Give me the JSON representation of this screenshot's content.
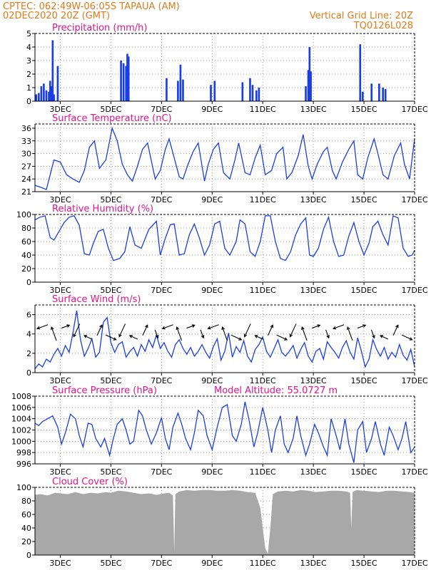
{
  "header": {
    "left_line1": "CPTEC:   062:49W-06:05S   TAPAUA (AM)",
    "left_line2": "02DEC2020 20Z (GMT)",
    "right_line1": "Vertical Grid Line: 20Z",
    "right_line2": "TQ0126L028"
  },
  "colors": {
    "header": "#e07b1a",
    "title": "#e0158a",
    "series": "#1a3ee6",
    "cloud": "#a8a8a8",
    "arrow": "#000000",
    "grid": "#9a9a9a"
  },
  "x_axis": {
    "range_days": [
      2.0,
      17.0
    ],
    "tick_days": [
      3,
      5,
      7,
      9,
      11,
      13,
      15,
      17
    ],
    "tick_labels": [
      "3DEC",
      "5DEC",
      "7DEC",
      "9DEC",
      "11DEC",
      "13DEC",
      "15DEC",
      "17DEC"
    ]
  },
  "chart_data": [
    {
      "id": "precip",
      "type": "bar",
      "title": "Precipitation (mm/h)",
      "ylim": [
        0,
        5
      ],
      "yticks": [
        0,
        1,
        2,
        3,
        4,
        5
      ],
      "grid": true,
      "bars": [
        [
          2.05,
          0.5
        ],
        [
          2.15,
          0.6
        ],
        [
          2.25,
          1.1
        ],
        [
          2.35,
          1.3
        ],
        [
          2.45,
          0.8
        ],
        [
          2.55,
          0.7
        ],
        [
          2.6,
          1.5
        ],
        [
          2.65,
          1.1
        ],
        [
          2.7,
          4.5
        ],
        [
          2.75,
          0.5
        ],
        [
          2.9,
          2.6
        ],
        [
          5.4,
          3.0
        ],
        [
          5.5,
          2.8
        ],
        [
          5.6,
          2.6
        ],
        [
          5.65,
          3.5
        ],
        [
          5.7,
          3.3
        ],
        [
          7.2,
          1.7
        ],
        [
          7.65,
          1.5
        ],
        [
          7.75,
          2.7
        ],
        [
          7.85,
          1.6
        ],
        [
          8.95,
          1.2
        ],
        [
          9.1,
          1.5
        ],
        [
          10.2,
          1.4
        ],
        [
          10.5,
          1.7
        ],
        [
          10.6,
          1.2
        ],
        [
          10.75,
          0.8
        ],
        [
          10.85,
          1.0
        ],
        [
          12.7,
          1.1
        ],
        [
          12.8,
          2.3
        ],
        [
          12.85,
          4.0
        ],
        [
          12.9,
          2.2
        ],
        [
          14.85,
          4.2
        ],
        [
          14.95,
          0.7
        ],
        [
          15.3,
          1.3
        ],
        [
          15.6,
          1.3
        ],
        [
          15.75,
          1.0
        ],
        [
          15.85,
          0.9
        ]
      ]
    },
    {
      "id": "temperature",
      "type": "line",
      "title": "Surface Temperature (nC)",
      "ylim": [
        21,
        37
      ],
      "yticks": [
        21,
        24,
        27,
        30,
        33,
        36
      ],
      "grid": true,
      "x": [
        2.0,
        2.25,
        2.45,
        2.6,
        2.75,
        3.0,
        3.25,
        3.5,
        3.75,
        3.95,
        4.15,
        4.35,
        4.55,
        4.8,
        5.05,
        5.25,
        5.45,
        5.65,
        5.85,
        6.05,
        6.25,
        6.45,
        6.75,
        6.95,
        7.15,
        7.3,
        7.5,
        7.7,
        7.85,
        8.05,
        8.25,
        8.45,
        8.7,
        8.85,
        9.05,
        9.25,
        9.45,
        9.7,
        9.9,
        10.05,
        10.3,
        10.5,
        10.7,
        10.9,
        11.1,
        11.35,
        11.55,
        11.8,
        11.95,
        12.15,
        12.4,
        12.6,
        12.8,
        12.95,
        13.15,
        13.4,
        13.55,
        13.75,
        13.9,
        14.15,
        14.4,
        14.6,
        14.75,
        14.95,
        15.15,
        15.4,
        15.55,
        15.75,
        15.95,
        16.2,
        16.45,
        16.6,
        16.8,
        17.0
      ],
      "values": [
        22.5,
        22.0,
        21.5,
        25.0,
        28.5,
        28.0,
        25.0,
        24.0,
        23.2,
        26.0,
        31.5,
        33.0,
        26.5,
        28.5,
        36.0,
        33.0,
        27.5,
        25.0,
        23.5,
        27.0,
        31.0,
        32.5,
        24.0,
        26.0,
        31.0,
        33.5,
        29.0,
        24.5,
        24.0,
        27.5,
        30.5,
        32.5,
        23.5,
        27.5,
        31.0,
        32.5,
        25.5,
        24.0,
        28.5,
        32.5,
        25.5,
        25.0,
        29.0,
        32.0,
        25.0,
        26.0,
        30.0,
        31.5,
        24.0,
        25.5,
        29.5,
        34.5,
        27.0,
        24.0,
        27.5,
        30.5,
        31.5,
        26.0,
        24.0,
        28.0,
        31.0,
        33.0,
        25.0,
        24.0,
        29.0,
        33.5,
        30.0,
        25.0,
        24.0,
        29.5,
        32.5,
        27.5,
        24.0,
        33.5
      ]
    },
    {
      "id": "humidity",
      "type": "line",
      "title": "Relative Humidity (%)",
      "ylim": [
        0,
        100
      ],
      "yticks": [
        0,
        20,
        40,
        60,
        80,
        100
      ],
      "grid": true,
      "x": [
        2.0,
        2.2,
        2.4,
        2.6,
        2.75,
        2.95,
        3.15,
        3.35,
        3.55,
        3.75,
        3.95,
        4.15,
        4.3,
        4.5,
        4.7,
        4.9,
        5.1,
        5.35,
        5.55,
        5.75,
        5.95,
        6.2,
        6.5,
        6.8,
        6.95,
        7.15,
        7.35,
        7.5,
        7.7,
        7.9,
        8.1,
        8.3,
        8.5,
        8.7,
        8.9,
        9.1,
        9.3,
        9.5,
        9.7,
        9.95,
        10.1,
        10.3,
        10.5,
        10.7,
        10.9,
        11.1,
        11.3,
        11.5,
        11.7,
        11.9,
        12.1,
        12.3,
        12.5,
        12.7,
        12.85,
        13.0,
        13.2,
        13.4,
        13.6,
        13.8,
        14.0,
        14.2,
        14.4,
        14.6,
        14.8,
        15.0,
        15.2,
        15.35,
        15.55,
        15.75,
        15.95,
        16.15,
        16.35,
        16.55,
        16.75,
        16.9,
        17.0
      ],
      "values": [
        92,
        96,
        98,
        66,
        62,
        75,
        88,
        96,
        98,
        84,
        42,
        40,
        57,
        75,
        78,
        50,
        32,
        35,
        45,
        82,
        55,
        50,
        78,
        90,
        40,
        65,
        85,
        86,
        40,
        42,
        70,
        86,
        65,
        40,
        55,
        86,
        90,
        50,
        40,
        60,
        92,
        86,
        45,
        38,
        60,
        98,
        98,
        60,
        35,
        32,
        45,
        70,
        86,
        95,
        40,
        38,
        50,
        78,
        96,
        60,
        38,
        40,
        68,
        88,
        60,
        40,
        58,
        82,
        90,
        70,
        55,
        98,
        95,
        50,
        38,
        40,
        47
      ]
    },
    {
      "id": "wind",
      "type": "line",
      "title": "Surface Wind (m/s)",
      "ylim": [
        0,
        7
      ],
      "yticks": [
        0,
        2,
        4,
        6
      ],
      "grid": true,
      "x": [
        2.0,
        2.15,
        2.3,
        2.45,
        2.6,
        2.75,
        2.9,
        3.05,
        3.2,
        3.35,
        3.5,
        3.65,
        3.8,
        3.95,
        4.1,
        4.25,
        4.4,
        4.55,
        4.7,
        4.85,
        5.0,
        5.15,
        5.3,
        5.45,
        5.6,
        5.75,
        5.9,
        6.05,
        6.2,
        6.35,
        6.5,
        6.65,
        6.8,
        6.95,
        7.1,
        7.25,
        7.4,
        7.55,
        7.7,
        7.85,
        8.0,
        8.15,
        8.3,
        8.45,
        8.6,
        8.75,
        8.9,
        9.05,
        9.2,
        9.35,
        9.5,
        9.65,
        9.8,
        9.95,
        10.1,
        10.25,
        10.4,
        10.55,
        10.7,
        10.85,
        11.0,
        11.15,
        11.3,
        11.45,
        11.6,
        11.75,
        11.9,
        12.05,
        12.2,
        12.35,
        12.5,
        12.65,
        12.8,
        12.95,
        13.1,
        13.25,
        13.4,
        13.55,
        13.7,
        13.85,
        14.0,
        14.15,
        14.3,
        14.45,
        14.6,
        14.75,
        14.9,
        15.05,
        15.2,
        15.35,
        15.5,
        15.65,
        15.8,
        15.95,
        16.1,
        16.25,
        16.4,
        16.55,
        16.7,
        16.85,
        17.0
      ],
      "values": [
        0.4,
        0.9,
        0.6,
        1.4,
        1.1,
        1.9,
        2.5,
        1.7,
        2.8,
        2.1,
        4.1,
        6.4,
        3.4,
        1.7,
        2.5,
        3.5,
        1.6,
        2.1,
        5.2,
        5.7,
        3.1,
        2.1,
        2.9,
        3.2,
        1.6,
        2.2,
        2.6,
        1.7,
        2.9,
        2.2,
        3.4,
        2.6,
        3.9,
        2.5,
        3.1,
        2.2,
        1.6,
        2.9,
        3.4,
        2.5,
        1.9,
        2.6,
        1.7,
        2.2,
        2.9,
        2.1,
        1.5,
        2.7,
        3.5,
        1.3,
        2.2,
        4.1,
        1.6,
        2.7,
        2.1,
        3.3,
        1.7,
        1.1,
        2.4,
        2.9,
        3.7,
        2.2,
        1.6,
        2.5,
        3.4,
        2.1,
        1.7,
        2.2,
        2.8,
        1.5,
        2.4,
        3.1,
        1.7,
        1.1,
        2.2,
        2.5,
        1.4,
        3.2,
        2.6,
        2.1,
        1.5,
        2.6,
        3.3,
        2.1,
        1.4,
        3.6,
        2.2,
        0.6,
        1.4,
        3.4,
        2.4,
        1.7,
        2.6,
        1.4,
        2.1,
        1.6,
        2.9,
        1.8,
        1.3,
        2.4,
        0.6
      ]
    },
    {
      "id": "pressure",
      "type": "line",
      "title": "Surface Pressure (hPa)",
      "annotation": "Model Altitude: 55.0727 m",
      "ylim": [
        996,
        1008
      ],
      "yticks": [
        996,
        998,
        1000,
        1002,
        1004,
        1006,
        1008
      ],
      "grid": true,
      "x": [
        2.0,
        2.15,
        2.3,
        2.5,
        2.7,
        2.9,
        3.05,
        3.2,
        3.4,
        3.6,
        3.75,
        3.9,
        4.1,
        4.25,
        4.4,
        4.6,
        4.75,
        4.95,
        5.1,
        5.25,
        5.45,
        5.6,
        5.75,
        5.9,
        6.1,
        6.25,
        6.4,
        6.6,
        6.8,
        7.0,
        7.15,
        7.3,
        7.45,
        7.65,
        7.8,
        7.95,
        8.15,
        8.3,
        8.45,
        8.65,
        8.8,
        9.0,
        9.2,
        9.4,
        9.6,
        9.8,
        9.95,
        10.15,
        10.3,
        10.45,
        10.65,
        10.8,
        11.0,
        11.2,
        11.35,
        11.5,
        11.7,
        11.85,
        12.0,
        12.2,
        12.35,
        12.5,
        12.7,
        12.85,
        13.05,
        13.2,
        13.4,
        13.55,
        13.7,
        13.9,
        14.05,
        14.25,
        14.4,
        14.6,
        14.75,
        14.95,
        15.1,
        15.3,
        15.45,
        15.65,
        15.8,
        16.0,
        16.15,
        16.35,
        16.5,
        16.65,
        16.85,
        17.0
      ],
      "values": [
        1003.2,
        1002.8,
        1003.5,
        1004.0,
        1004.5,
        1002.5,
        999.5,
        1001.5,
        1004.8,
        1004.0,
        1001.0,
        999.0,
        1003.2,
        1003.0,
        1000.5,
        999.0,
        1000.5,
        997.5,
        1000.5,
        1003.0,
        1004.0,
        1002.0,
        999.5,
        1000.0,
        1005.5,
        1004.5,
        1002.0,
        999.5,
        1001.5,
        1004.2,
        1000.5,
        998.5,
        1002.5,
        1005.0,
        1003.0,
        1000.5,
        998.5,
        1001.5,
        1005.5,
        1004.5,
        1001.0,
        998.5,
        1002.5,
        1006.0,
        1006.5,
        1001.0,
        1000.0,
        1003.0,
        1007.0,
        1004.0,
        999.0,
        1001.5,
        1006.0,
        1002.0,
        998.0,
        1002.0,
        1004.5,
        999.5,
        998.0,
        1000.5,
        1004.5,
        1001.0,
        997.5,
        999.5,
        1003.0,
        1001.5,
        999.0,
        997.5,
        1004.0,
        1001.0,
        998.5,
        1004.0,
        999.5,
        996.2,
        1002.0,
        1003.5,
        998.0,
        1000.5,
        1003.5,
        999.5,
        997.5,
        1002.5,
        1001.0,
        998.5,
        1000.5,
        1003.5,
        998.0,
        999.0
      ]
    },
    {
      "id": "cloud",
      "type": "area",
      "title": "Cloud Cover (%)",
      "ylim": [
        0,
        100
      ],
      "yticks": [
        0,
        20,
        40,
        60,
        80,
        100
      ],
      "grid": true,
      "x": [
        2.0,
        2.2,
        2.5,
        2.8,
        3.0,
        3.3,
        3.6,
        3.9,
        4.2,
        4.5,
        4.8,
        5.0,
        5.3,
        5.6,
        5.9,
        6.2,
        6.5,
        6.8,
        7.1,
        7.3,
        7.45,
        7.5,
        7.55,
        7.7,
        8.0,
        8.3,
        8.6,
        8.9,
        9.2,
        9.5,
        9.8,
        10.1,
        10.4,
        10.7,
        10.9,
        11.0,
        11.1,
        11.2,
        11.3,
        11.4,
        11.6,
        11.9,
        12.2,
        12.5,
        12.8,
        13.1,
        13.4,
        13.7,
        14.0,
        14.3,
        14.45,
        14.5,
        14.55,
        14.7,
        15.0,
        15.3,
        15.6,
        15.9,
        16.2,
        16.5,
        16.8,
        17.0
      ],
      "values": [
        89,
        90,
        88,
        92,
        91,
        90,
        93,
        90,
        92,
        91,
        93,
        92,
        95,
        94,
        92,
        90,
        91,
        89,
        91,
        92,
        88,
        5,
        90,
        94,
        96,
        95,
        96,
        96,
        95,
        95,
        96,
        95,
        93,
        92,
        70,
        40,
        10,
        2,
        40,
        90,
        94,
        95,
        94,
        96,
        95,
        93,
        94,
        95,
        95,
        94,
        92,
        40,
        93,
        96,
        95,
        94,
        93,
        95,
        95,
        94,
        93,
        92
      ]
    }
  ]
}
